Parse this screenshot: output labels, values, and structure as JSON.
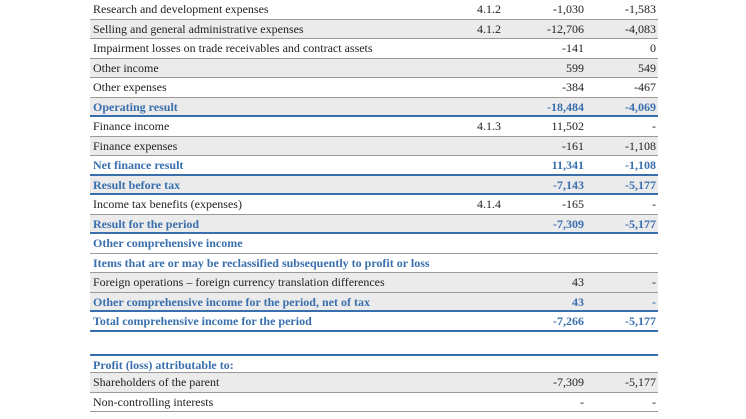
{
  "rows": [
    {
      "label": "Research and development expenses",
      "note": "4.1.2",
      "v1": "-1,030",
      "v2": "-1,583"
    },
    {
      "label": "Selling and general administrative expenses",
      "note": "4.1.2",
      "v1": "-12,706",
      "v2": "-4,083"
    },
    {
      "label": "Impairment losses on trade receivables and contract assets",
      "note": "",
      "v1": "-141",
      "v2": "0"
    },
    {
      "label": "Other income",
      "note": "",
      "v1": "599",
      "v2": "549"
    },
    {
      "label": "Other expenses",
      "note": "",
      "v1": "-384",
      "v2": "-467"
    },
    {
      "label": "Operating result",
      "note": "",
      "v1": "-18,484",
      "v2": "-4,069"
    },
    {
      "label": "Finance income",
      "note": "4.1.3",
      "v1": "11,502",
      "v2": "-"
    },
    {
      "label": "Finance expenses",
      "note": "",
      "v1": "-161",
      "v2": "-1,108"
    },
    {
      "label": "Net finance result",
      "note": "",
      "v1": "11,341",
      "v2": "-1,108"
    },
    {
      "label": "Result before tax",
      "note": "",
      "v1": "-7,143",
      "v2": "-5,177"
    },
    {
      "label": "Income tax benefits (expenses)",
      "note": "4.1.4",
      "v1": "-165",
      "v2": "-"
    },
    {
      "label": "Result for the period",
      "note": "",
      "v1": "-7,309",
      "v2": "-5,177"
    },
    {
      "label": "Other comprehensive income",
      "note": "",
      "v1": "",
      "v2": ""
    },
    {
      "label": "Items that are or may be reclassified subsequently to profit or loss",
      "note": "",
      "v1": "",
      "v2": ""
    },
    {
      "label": "Foreign operations – foreign currency translation differences",
      "note": "",
      "v1": "43",
      "v2": "-"
    },
    {
      "label": "Other comprehensive income for the period, net of tax",
      "note": "",
      "v1": "43",
      "v2": "-"
    },
    {
      "label": "Total comprehensive income for the period",
      "note": "",
      "v1": "-7,266",
      "v2": "-5,177"
    }
  ],
  "attrib": [
    {
      "label": "Profit (loss) attributable to:",
      "note": "",
      "v1": "",
      "v2": ""
    },
    {
      "label": "Shareholders of the parent",
      "note": "",
      "v1": "-7,309",
      "v2": "-5,177"
    },
    {
      "label": "Non-controlling interests",
      "note": "",
      "v1": "-",
      "v2": "-"
    }
  ]
}
